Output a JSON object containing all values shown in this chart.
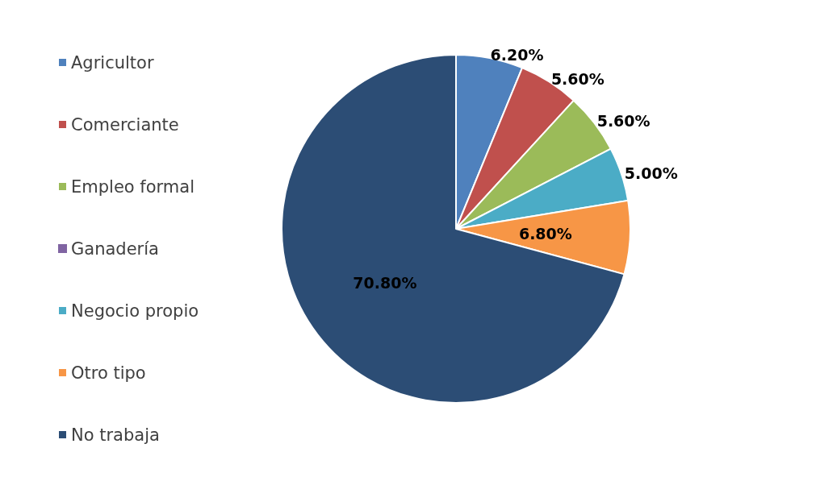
{
  "chart_data": {
    "type": "pie",
    "categories": [
      "Agricultor",
      "Comerciante",
      "Empleo formal",
      "Ganadería",
      "Negocio propio",
      "Otro tipo",
      "No trabaja"
    ],
    "values": [
      6.2,
      5.6,
      5.6,
      0,
      5.0,
      6.8,
      70.8
    ],
    "colors": [
      "#4f81bd",
      "#c0504d",
      "#9bbb59",
      "#8064a2",
      "#4bacc6",
      "#f79646",
      "#2c4d75"
    ],
    "value_labels": [
      "6.20%",
      "5.60%",
      "5.60%",
      null,
      "5.00%",
      "6.80%",
      "70.80%"
    ],
    "legend": "left"
  }
}
